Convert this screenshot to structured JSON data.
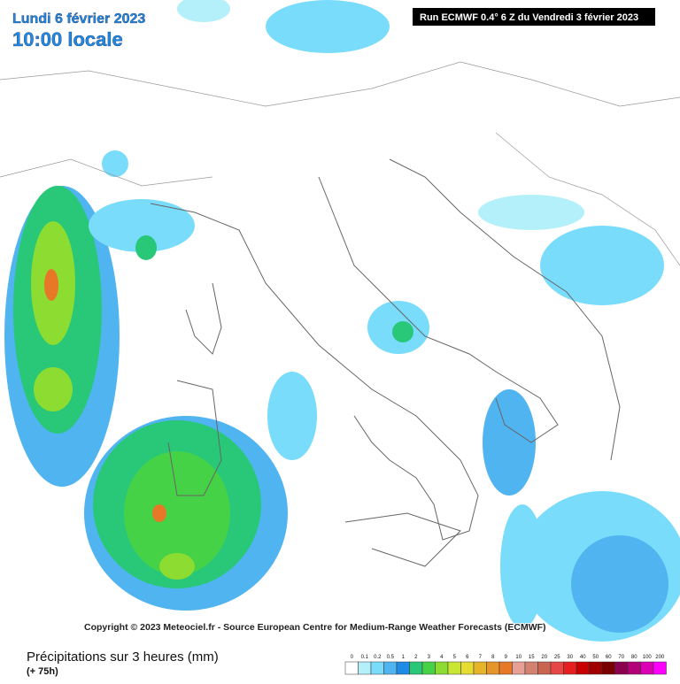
{
  "header": {
    "date": "Lundi 6 février 2023",
    "time": "10:00 locale",
    "run": "Run ECMWF 0.4° 6 Z du Vendredi 3 février 2023"
  },
  "copyright": "Copyright © 2023 Meteociel.fr - Source European Centre for Medium-Range Weather Forecasts (ECMWF)",
  "legend": {
    "title": "Précipitations sur 3 heures (mm)",
    "lead": "(+ 75h)",
    "items": [
      {
        "label": "0",
        "color": "#ffffff"
      },
      {
        "label": "0.1",
        "color": "#b4f0fa"
      },
      {
        "label": "0.2",
        "color": "#78dcfa"
      },
      {
        "label": "0.5",
        "color": "#50b4f0"
      },
      {
        "label": "1",
        "color": "#1e8ce6"
      },
      {
        "label": "2",
        "color": "#28c878"
      },
      {
        "label": "3",
        "color": "#46d246"
      },
      {
        "label": "4",
        "color": "#8cdc32"
      },
      {
        "label": "5",
        "color": "#c8e632"
      },
      {
        "label": "6",
        "color": "#e6dc32"
      },
      {
        "label": "7",
        "color": "#e6b428"
      },
      {
        "label": "8",
        "color": "#e69628"
      },
      {
        "label": "9",
        "color": "#e67828"
      },
      {
        "label": "10",
        "color": "#e6a096"
      },
      {
        "label": "15",
        "color": "#d2826e"
      },
      {
        "label": "20",
        "color": "#c86450"
      },
      {
        "label": "25",
        "color": "#e64646"
      },
      {
        "label": "30",
        "color": "#e61e1e"
      },
      {
        "label": "40",
        "color": "#c80000"
      },
      {
        "label": "50",
        "color": "#a00000"
      },
      {
        "label": "60",
        "color": "#780000"
      },
      {
        "label": "70",
        "color": "#8c0050"
      },
      {
        "label": "80",
        "color": "#b40078"
      },
      {
        "label": "100",
        "color": "#dc00b4"
      },
      {
        "label": "200",
        "color": "#ff00ff"
      }
    ]
  }
}
